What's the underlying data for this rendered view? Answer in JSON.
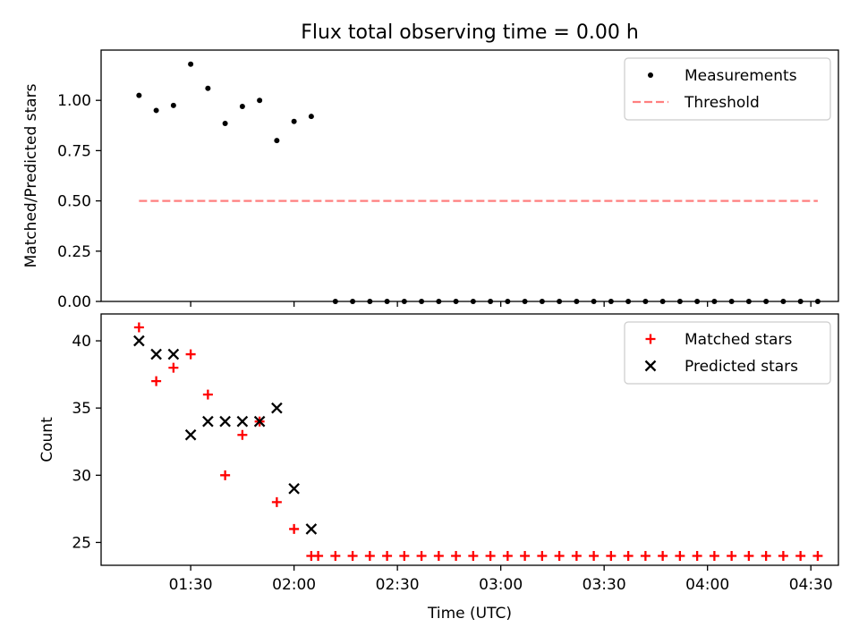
{
  "figure": {
    "title": "Flux total observing time = 0.00 h",
    "xlabel": "Time (UTC)"
  },
  "chart_data": [
    {
      "type": "scatter",
      "panel": "top",
      "ylabel": "Matched/Predicted stars",
      "xlim": [
        "01:04",
        "04:38"
      ],
      "ylim": [
        0,
        1.25
      ],
      "yticks": [
        0.0,
        0.25,
        0.5,
        0.75,
        1.0
      ],
      "ytick_labels": [
        "0.00",
        "0.25",
        "0.50",
        "0.75",
        "1.00"
      ],
      "legend_position": "top-right",
      "series": [
        {
          "name": "Measurements",
          "marker": "dot",
          "color": "#000000",
          "x": [
            "01:15",
            "01:20",
            "01:25",
            "01:30",
            "01:35",
            "01:40",
            "01:45",
            "01:50",
            "01:55",
            "02:00",
            "02:05",
            "02:12",
            "02:17",
            "02:22",
            "02:27",
            "02:32",
            "02:37",
            "02:42",
            "02:47",
            "02:52",
            "02:57",
            "03:02",
            "03:07",
            "03:12",
            "03:17",
            "03:22",
            "03:27",
            "03:32",
            "03:37",
            "03:42",
            "03:47",
            "03:52",
            "03:57",
            "04:02",
            "04:07",
            "04:12",
            "04:17",
            "04:22",
            "04:27",
            "04:32"
          ],
          "y": [
            1.025,
            0.95,
            0.975,
            1.18,
            1.06,
            0.885,
            0.97,
            1.0,
            0.8,
            0.895,
            0.92,
            0,
            0,
            0,
            0,
            0,
            0,
            0,
            0,
            0,
            0,
            0,
            0,
            0,
            0,
            0,
            0,
            0,
            0,
            0,
            0,
            0,
            0,
            0,
            0,
            0,
            0,
            0,
            0,
            0
          ]
        },
        {
          "name": "Threshold",
          "type": "line",
          "style": "dashed",
          "color": "#ff7f7f",
          "x": [
            "01:15",
            "04:32"
          ],
          "y": [
            0.5,
            0.5
          ]
        }
      ]
    },
    {
      "type": "scatter",
      "panel": "bottom",
      "ylabel": "Count",
      "xlim": [
        "01:04",
        "04:38"
      ],
      "ylim": [
        23.3,
        42.0
      ],
      "yticks": [
        25,
        30,
        35,
        40
      ],
      "ytick_labels": [
        "25",
        "30",
        "35",
        "40"
      ],
      "xticks": [
        "01:30",
        "02:00",
        "02:30",
        "03:00",
        "03:30",
        "04:00",
        "04:30"
      ],
      "xtick_labels": [
        "01:30",
        "02:00",
        "02:30",
        "03:00",
        "03:30",
        "04:00",
        "04:30"
      ],
      "legend_position": "top-right",
      "series": [
        {
          "name": "Matched stars",
          "marker": "plus",
          "color": "#ff0000",
          "x": [
            "01:15",
            "01:20",
            "01:25",
            "01:30",
            "01:35",
            "01:40",
            "01:45",
            "01:50",
            "01:55",
            "02:00",
            "02:05",
            "02:07",
            "02:12",
            "02:17",
            "02:22",
            "02:27",
            "02:32",
            "02:37",
            "02:42",
            "02:47",
            "02:52",
            "02:57",
            "03:02",
            "03:07",
            "03:12",
            "03:17",
            "03:22",
            "03:27",
            "03:32",
            "03:37",
            "03:42",
            "03:47",
            "03:52",
            "03:57",
            "04:02",
            "04:07",
            "04:12",
            "04:17",
            "04:22",
            "04:27",
            "04:32"
          ],
          "y": [
            41,
            37,
            38,
            39,
            36,
            30,
            33,
            34,
            28,
            26,
            24,
            24,
            24,
            24,
            24,
            24,
            24,
            24,
            24,
            24,
            24,
            24,
            24,
            24,
            24,
            24,
            24,
            24,
            24,
            24,
            24,
            24,
            24,
            24,
            24,
            24,
            24,
            24,
            24,
            24,
            24
          ]
        },
        {
          "name": "Predicted stars",
          "marker": "x",
          "color": "#000000",
          "x": [
            "01:15",
            "01:20",
            "01:25",
            "01:30",
            "01:35",
            "01:40",
            "01:45",
            "01:50",
            "01:55",
            "02:00",
            "02:05"
          ],
          "y": [
            40,
            39,
            39,
            33,
            34,
            34,
            34,
            34,
            35,
            29,
            26
          ]
        }
      ]
    }
  ]
}
